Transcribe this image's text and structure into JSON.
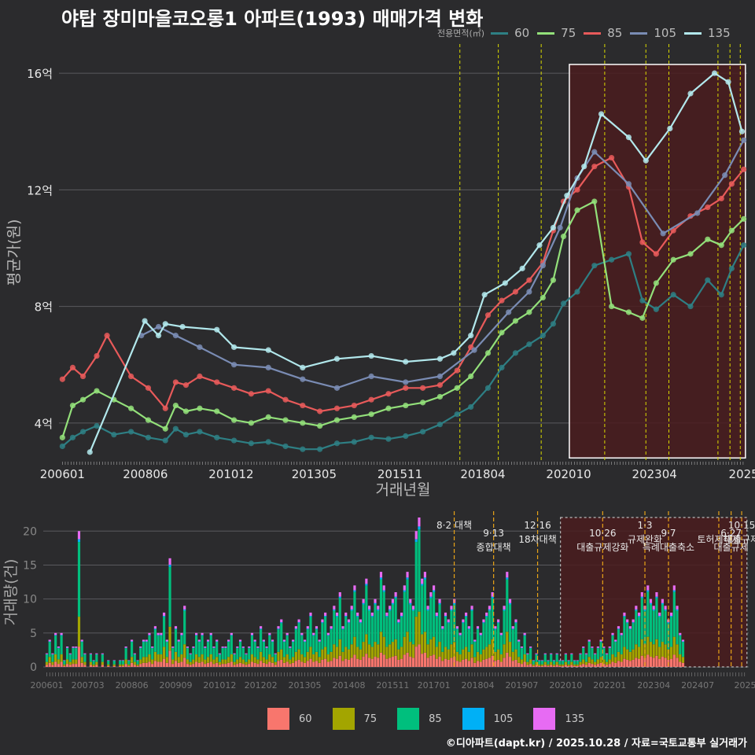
{
  "title": "야탑 장미마을코오롱1 아파트(1993) 매매가격 변화",
  "legend": {
    "title": "전용면적(㎡)",
    "items": [
      {
        "label": "60",
        "line_color": "#2e7f84",
        "bar_color": "#f8766d"
      },
      {
        "label": "75",
        "line_color": "#93e07a",
        "bar_color": "#a3a500"
      },
      {
        "label": "85",
        "line_color": "#e85a5a",
        "bar_color": "#00bf7d"
      },
      {
        "label": "105",
        "line_color": "#7a8cb4",
        "bar_color": "#00b0f6"
      },
      {
        "label": "135",
        "line_color": "#b2e8ec",
        "bar_color": "#e76bf3"
      }
    ]
  },
  "credit": "©디아파트(dapt.kr) / 2025.10.28 / 자료=국토교통부 실거래가",
  "chart_data": [
    {
      "type": "line",
      "title": "야탑 장미마을코오롱1 아파트(1993) 매매가격 변화",
      "xlabel": "거래년월",
      "ylabel": "평균가(원)",
      "x_ticks": [
        "200601",
        "200806",
        "201012",
        "201305",
        "201511",
        "201804",
        "202010",
        "202304",
        "2025"
      ],
      "y_ticks": [
        "4억",
        "8억",
        "12억",
        "16억"
      ],
      "ylim_eok": [
        2.7,
        17.0
      ],
      "xlim_year": [
        2005.9,
        2025.95
      ],
      "highlight": {
        "x_from": 2020.77,
        "x_to": 2025.9,
        "y_from": 2.8,
        "y_to": 16.3
      },
      "policy_lines": [
        2017.58,
        2018.7,
        2019.95,
        2021.8,
        2023.0,
        2023.67,
        2025.1,
        2025.45,
        2025.75
      ],
      "series": [
        {
          "name": "60",
          "color": "#2e7f84",
          "x": [
            2006.0,
            2006.3,
            2006.6,
            2007.0,
            2007.5,
            2008.0,
            2008.5,
            2009.0,
            2009.3,
            2009.6,
            2010.0,
            2010.5,
            2011.0,
            2011.5,
            2012.0,
            2012.5,
            2013.0,
            2013.5,
            2014.0,
            2014.5,
            2015.0,
            2015.5,
            2016.0,
            2016.5,
            2017.0,
            2017.5,
            2017.9,
            2018.4,
            2018.8,
            2019.2,
            2019.6,
            2020.0,
            2020.3,
            2020.6,
            2021.0,
            2021.5,
            2022.0,
            2022.5,
            2022.9,
            2023.3,
            2023.8,
            2024.3,
            2024.8,
            2025.2,
            2025.5,
            2025.85
          ],
          "y": [
            3.2,
            3.5,
            3.7,
            3.9,
            3.6,
            3.7,
            3.5,
            3.4,
            3.8,
            3.6,
            3.7,
            3.5,
            3.4,
            3.3,
            3.35,
            3.2,
            3.1,
            3.1,
            3.3,
            3.35,
            3.5,
            3.45,
            3.55,
            3.7,
            3.95,
            4.3,
            4.55,
            5.2,
            5.9,
            6.4,
            6.7,
            7.0,
            7.4,
            8.1,
            8.5,
            9.4,
            9.6,
            9.8,
            8.2,
            7.9,
            8.4,
            8.0,
            8.9,
            8.4,
            9.3,
            10.1
          ]
        },
        {
          "name": "75",
          "color": "#93e07a",
          "x": [
            2006.0,
            2006.3,
            2006.6,
            2007.0,
            2007.5,
            2008.0,
            2008.5,
            2009.0,
            2009.3,
            2009.6,
            2010.0,
            2010.5,
            2011.0,
            2011.5,
            2012.0,
            2012.5,
            2013.0,
            2013.5,
            2014.0,
            2014.5,
            2015.0,
            2015.5,
            2016.0,
            2016.5,
            2017.0,
            2017.5,
            2017.9,
            2018.4,
            2018.8,
            2019.2,
            2019.6,
            2020.0,
            2020.3,
            2020.6,
            2021.0,
            2021.5,
            2022.0,
            2022.5,
            2022.9,
            2023.3,
            2023.8,
            2024.3,
            2024.8,
            2025.2,
            2025.5,
            2025.85
          ],
          "y": [
            3.5,
            4.6,
            4.8,
            5.1,
            4.8,
            4.5,
            4.1,
            3.8,
            4.6,
            4.4,
            4.5,
            4.4,
            4.1,
            4.0,
            4.2,
            4.1,
            4.0,
            3.9,
            4.1,
            4.2,
            4.3,
            4.5,
            4.6,
            4.7,
            4.9,
            5.2,
            5.6,
            6.4,
            7.1,
            7.5,
            7.8,
            8.3,
            8.9,
            10.4,
            11.3,
            11.6,
            8.0,
            7.8,
            7.6,
            8.8,
            9.6,
            9.8,
            10.3,
            10.1,
            10.6,
            11.0
          ]
        },
        {
          "name": "85",
          "color": "#e85a5a",
          "x": [
            2006.0,
            2006.3,
            2006.6,
            2007.0,
            2007.3,
            2008.0,
            2008.5,
            2009.0,
            2009.3,
            2009.6,
            2010.0,
            2010.5,
            2011.0,
            2011.5,
            2012.0,
            2012.5,
            2013.0,
            2013.5,
            2014.0,
            2014.5,
            2015.0,
            2015.5,
            2016.0,
            2016.5,
            2017.0,
            2017.5,
            2017.9,
            2018.4,
            2018.8,
            2019.2,
            2019.6,
            2020.0,
            2020.3,
            2020.6,
            2021.0,
            2021.5,
            2022.0,
            2022.5,
            2022.9,
            2023.3,
            2023.8,
            2024.3,
            2024.8,
            2025.2,
            2025.5,
            2025.85
          ],
          "y": [
            5.5,
            5.9,
            5.6,
            6.3,
            7.0,
            5.6,
            5.2,
            4.5,
            5.4,
            5.3,
            5.6,
            5.4,
            5.2,
            5.0,
            5.1,
            4.8,
            4.6,
            4.4,
            4.5,
            4.6,
            4.8,
            5.0,
            5.2,
            5.2,
            5.3,
            5.8,
            6.6,
            7.7,
            8.2,
            8.5,
            8.9,
            9.5,
            10.6,
            11.6,
            12.0,
            12.8,
            13.1,
            12.1,
            10.2,
            9.8,
            10.6,
            11.1,
            11.4,
            11.7,
            12.2,
            12.7
          ]
        },
        {
          "name": "105",
          "color": "#7a8cb4",
          "x": [
            2008.3,
            2008.8,
            2009.3,
            2010.0,
            2011.0,
            2012.0,
            2013.0,
            2014.0,
            2015.0,
            2016.0,
            2017.0,
            2018.0,
            2019.0,
            2019.6,
            2020.0,
            2020.5,
            2021.0,
            2021.5,
            2022.5,
            2023.5,
            2024.5,
            2025.3,
            2025.85
          ],
          "y": [
            7.0,
            7.3,
            7.0,
            6.6,
            6.0,
            5.9,
            5.5,
            5.2,
            5.6,
            5.4,
            5.6,
            6.5,
            7.8,
            8.5,
            9.4,
            10.7,
            12.4,
            13.3,
            12.2,
            10.5,
            11.2,
            12.5,
            13.7
          ]
        },
        {
          "name": "135",
          "color": "#b2e8ec",
          "x": [
            2006.8,
            2008.4,
            2008.8,
            2009.0,
            2009.5,
            2010.5,
            2011.0,
            2012.0,
            2013.0,
            2014.0,
            2015.0,
            2016.0,
            2017.0,
            2017.4,
            2017.9,
            2018.3,
            2018.9,
            2019.4,
            2019.9,
            2020.3,
            2020.7,
            2021.2,
            2021.7,
            2022.5,
            2023.0,
            2023.7,
            2024.3,
            2025.0,
            2025.4,
            2025.8
          ],
          "y": [
            3.0,
            7.5,
            7.0,
            7.4,
            7.3,
            7.2,
            6.6,
            6.5,
            5.9,
            6.2,
            6.3,
            6.1,
            6.2,
            6.4,
            7.0,
            8.4,
            8.8,
            9.3,
            10.1,
            10.7,
            11.8,
            12.8,
            14.6,
            13.8,
            13.0,
            14.1,
            15.3,
            16.0,
            15.7,
            14.0
          ]
        }
      ]
    },
    {
      "type": "bar",
      "xlabel": "",
      "ylabel": "거래량(건)",
      "x_ticks": [
        "200601",
        "200703",
        "200806",
        "200909",
        "201012",
        "201202",
        "201305",
        "201408",
        "201511",
        "201701",
        "201804",
        "201907",
        "202010",
        "202201",
        "202304",
        "202407",
        "2025"
      ],
      "y_ticks": [
        "0",
        "5",
        "10",
        "15",
        "20"
      ],
      "ylim": [
        0,
        22
      ],
      "highlight": {
        "x_from": 2020.6,
        "x_to": 2025.9
      },
      "annotations": [
        {
          "x": 2017.58,
          "lines": [
            "8·2 대책"
          ]
        },
        {
          "x": 2018.7,
          "lines": [
            "9·13",
            "종합대책"
          ]
        },
        {
          "x": 2019.95,
          "lines": [
            "12·16",
            "18차대책"
          ]
        },
        {
          "x": 2021.8,
          "lines": [
            "10·26",
            "대출규제강화"
          ]
        },
        {
          "x": 2023.0,
          "lines": [
            "1·3",
            "규제완화"
          ]
        },
        {
          "x": 2023.67,
          "lines": [
            "9·7",
            "특례대출축소"
          ]
        },
        {
          "x": 2025.1,
          "lines": [
            "",
            "토허제해제"
          ]
        },
        {
          "x": 2025.45,
          "lines": [
            "6·27",
            "대출규제"
          ]
        },
        {
          "x": 2025.75,
          "lines": [
            "10·15",
            "대출규제"
          ]
        }
      ],
      "series_names": [
        "60",
        "75",
        "85",
        "105",
        "135"
      ],
      "monthly_totals": [
        2,
        4,
        2,
        5,
        3,
        5,
        1,
        3,
        2,
        3,
        3,
        20,
        4,
        2,
        0,
        2,
        1,
        2,
        0,
        2,
        0,
        1,
        0,
        1,
        0,
        1,
        1,
        3,
        1,
        4,
        2,
        1,
        3,
        4,
        4,
        5,
        3,
        6,
        5,
        5,
        8,
        4,
        16,
        3,
        6,
        4,
        5,
        9,
        3,
        2,
        3,
        5,
        4,
        5,
        3,
        4,
        5,
        3,
        4,
        2,
        3,
        3,
        4,
        5,
        2,
        3,
        4,
        3,
        2,
        3,
        5,
        4,
        3,
        6,
        4,
        3,
        5,
        4,
        2,
        6,
        7,
        4,
        5,
        3,
        4,
        6,
        7,
        5,
        4,
        6,
        8,
        5,
        6,
        4,
        7,
        8,
        5,
        6,
        9,
        8,
        11,
        6,
        8,
        7,
        9,
        12,
        8,
        7,
        10,
        13,
        9,
        8,
        10,
        9,
        14,
        12,
        8,
        9,
        10,
        11,
        7,
        8,
        12,
        14,
        10,
        9,
        20,
        22,
        13,
        14,
        9,
        11,
        12,
        8,
        10,
        6,
        8,
        7,
        9,
        10,
        6,
        5,
        7,
        8,
        6,
        9,
        4,
        6,
        5,
        7,
        8,
        9,
        11,
        6,
        7,
        5,
        9,
        14,
        10,
        6,
        7,
        4,
        3,
        5,
        2,
        3,
        1,
        2,
        1,
        1,
        2,
        1,
        2,
        1,
        2,
        1,
        1,
        2,
        1,
        2,
        1,
        1,
        2,
        3,
        2,
        4,
        3,
        2,
        3,
        4,
        3,
        2,
        3,
        5,
        4,
        6,
        5,
        8,
        7,
        6,
        7,
        9,
        8,
        11,
        9,
        12,
        10,
        9,
        11,
        8,
        10,
        9,
        7,
        8,
        12,
        9,
        5,
        4
      ],
      "shares": [
        0.15,
        0.22,
        0.55,
        0.02,
        0.06
      ]
    }
  ]
}
